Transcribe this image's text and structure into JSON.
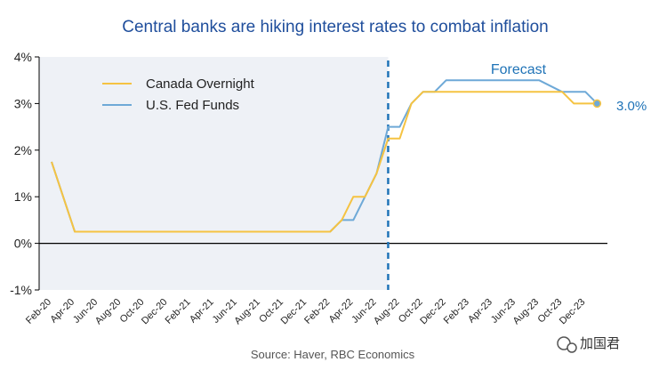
{
  "chart_data": {
    "type": "line",
    "title": "Central banks are hiking interest rates to combat inflation",
    "xlabel": "",
    "ylabel": "",
    "ylim": [
      -1,
      4
    ],
    "y_ticks": [
      "4%",
      "3%",
      "2%",
      "1%",
      "0%",
      "-1%"
    ],
    "x_tick_labels": [
      "Feb-20",
      "Apr-20",
      "Jun-20",
      "Aug-20",
      "Oct-20",
      "Dec-20",
      "Feb-21",
      "Apr-21",
      "Jun-21",
      "Aug-21",
      "Oct-21",
      "Dec-21",
      "Feb-22",
      "Apr-22",
      "Jun-22",
      "Aug-22",
      "Oct-22",
      "Dec-22",
      "Feb-23",
      "Apr-23",
      "Jun-23",
      "Aug-23",
      "Oct-23",
      "Dec-23"
    ],
    "forecast_start_month_index": 29,
    "forecast_label": "Forecast",
    "end_value_label": "3.0%",
    "series": [
      {
        "name": "Canada Overnight",
        "color": "#f5c342",
        "points": [
          [
            0,
            1.75
          ],
          [
            2,
            0.25
          ],
          [
            24,
            0.25
          ],
          [
            25,
            0.5
          ],
          [
            26,
            1.0
          ],
          [
            27,
            1.0
          ],
          [
            28,
            1.5
          ],
          [
            29,
            2.25
          ],
          [
            30,
            2.25
          ],
          [
            31,
            3.0
          ],
          [
            32,
            3.25
          ],
          [
            33,
            3.25
          ],
          [
            44,
            3.25
          ],
          [
            45,
            3.0
          ],
          [
            47,
            3.0
          ]
        ]
      },
      {
        "name": "U.S. Fed Funds",
        "color": "#6ea9d7",
        "points": [
          [
            0,
            1.75
          ],
          [
            2,
            0.25
          ],
          [
            24,
            0.25
          ],
          [
            25,
            0.5
          ],
          [
            26,
            0.5
          ],
          [
            28,
            1.5
          ],
          [
            29,
            2.5
          ],
          [
            30,
            2.5
          ],
          [
            31,
            3.0
          ],
          [
            32,
            3.25
          ],
          [
            33,
            3.25
          ],
          [
            34,
            3.5
          ],
          [
            42,
            3.5
          ],
          [
            44,
            3.25
          ],
          [
            46,
            3.25
          ],
          [
            47,
            3.0
          ]
        ]
      }
    ]
  },
  "source": "Source: Haver, RBC Economics",
  "watermark": "加国君",
  "colors": {
    "title": "#1f4e9c",
    "forecast_line": "#1f73b7",
    "shade": "#eef1f6",
    "zero_line": "#000000"
  }
}
